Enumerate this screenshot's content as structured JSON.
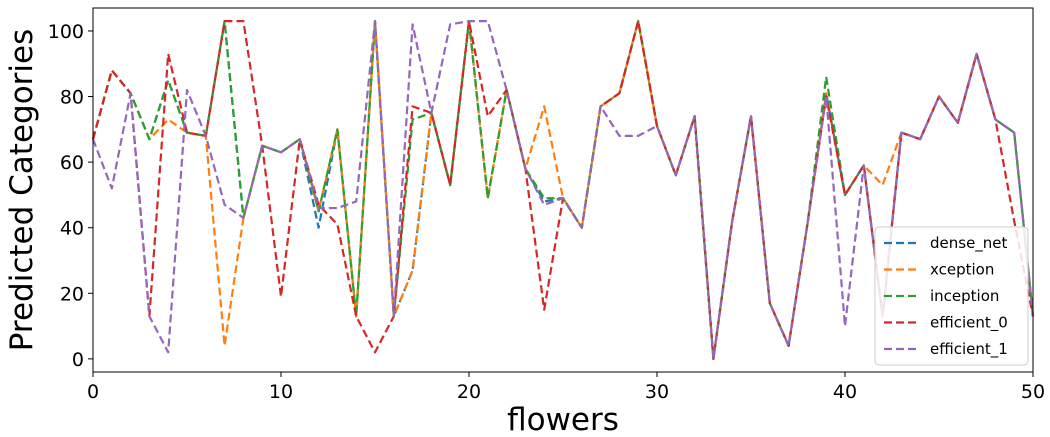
{
  "chart_data": {
    "type": "line",
    "xlabel": "flowers",
    "ylabel": "Predicted Categories",
    "xlim": [
      0,
      50
    ],
    "ylim": [
      -4,
      107
    ],
    "xticks": [
      0,
      10,
      20,
      30,
      40,
      50
    ],
    "yticks": [
      0,
      20,
      40,
      60,
      80,
      100
    ],
    "grid": false,
    "legend_position": "lower-right",
    "line_style": "dashed",
    "x": [
      0,
      1,
      2,
      3,
      4,
      5,
      6,
      7,
      8,
      9,
      10,
      11,
      12,
      13,
      14,
      15,
      16,
      17,
      18,
      19,
      20,
      21,
      22,
      23,
      24,
      25,
      26,
      27,
      28,
      29,
      30,
      31,
      32,
      33,
      34,
      35,
      36,
      37,
      38,
      39,
      40,
      41,
      42,
      43,
      44,
      45,
      46,
      47,
      48,
      49,
      50
    ],
    "series": [
      {
        "name": "dense_net",
        "color": "#1f77b4",
        "values": [
          67,
          88,
          81,
          67,
          85,
          69,
          68,
          103,
          43,
          65,
          63,
          67,
          40,
          70,
          13,
          103,
          13,
          27,
          75,
          53,
          103,
          49,
          82,
          58,
          48,
          49,
          40,
          77,
          81,
          103,
          71,
          56,
          74,
          0,
          42,
          74,
          17,
          4,
          41,
          81,
          50,
          59,
          13,
          69,
          67,
          80,
          72,
          93,
          73,
          69,
          13
        ]
      },
      {
        "name": "xception",
        "color": "#ff7f0e",
        "values": [
          67,
          88,
          81,
          67,
          73,
          69,
          68,
          4,
          43,
          65,
          63,
          67,
          45,
          70,
          13,
          103,
          13,
          27,
          75,
          53,
          103,
          49,
          82,
          58,
          77,
          49,
          40,
          77,
          81,
          103,
          71,
          56,
          74,
          0,
          42,
          74,
          17,
          4,
          41,
          81,
          50,
          59,
          53,
          69,
          67,
          80,
          72,
          93,
          73,
          69,
          13
        ]
      },
      {
        "name": "inception",
        "color": "#2ca02c",
        "values": [
          67,
          88,
          81,
          67,
          85,
          69,
          68,
          103,
          43,
          65,
          63,
          67,
          45,
          70,
          13,
          103,
          13,
          73,
          75,
          53,
          103,
          49,
          82,
          58,
          49,
          49,
          40,
          77,
          81,
          103,
          71,
          56,
          74,
          0,
          42,
          74,
          17,
          4,
          41,
          86,
          50,
          59,
          13,
          69,
          67,
          80,
          72,
          93,
          73,
          69,
          13
        ]
      },
      {
        "name": "efficient_0",
        "color": "#d62728",
        "values": [
          67,
          88,
          81,
          13,
          93,
          69,
          68,
          103,
          103,
          65,
          19,
          67,
          47,
          41,
          13,
          2,
          13,
          77,
          75,
          53,
          103,
          74,
          82,
          58,
          15,
          49,
          40,
          77,
          81,
          103,
          71,
          56,
          74,
          0,
          42,
          74,
          17,
          4,
          41,
          80,
          50,
          59,
          13,
          69,
          67,
          80,
          72,
          93,
          73,
          42,
          13
        ]
      },
      {
        "name": "efficient_1",
        "color": "#9467bd",
        "values": [
          67,
          52,
          81,
          13,
          2,
          82,
          68,
          47,
          43,
          65,
          63,
          67,
          46,
          46,
          48,
          103,
          13,
          102,
          75,
          102,
          103,
          103,
          82,
          58,
          47,
          49,
          40,
          77,
          68,
          68,
          71,
          56,
          74,
          0,
          42,
          74,
          17,
          4,
          41,
          80,
          10,
          59,
          13,
          69,
          67,
          80,
          72,
          93,
          73,
          69,
          13
        ]
      }
    ]
  }
}
